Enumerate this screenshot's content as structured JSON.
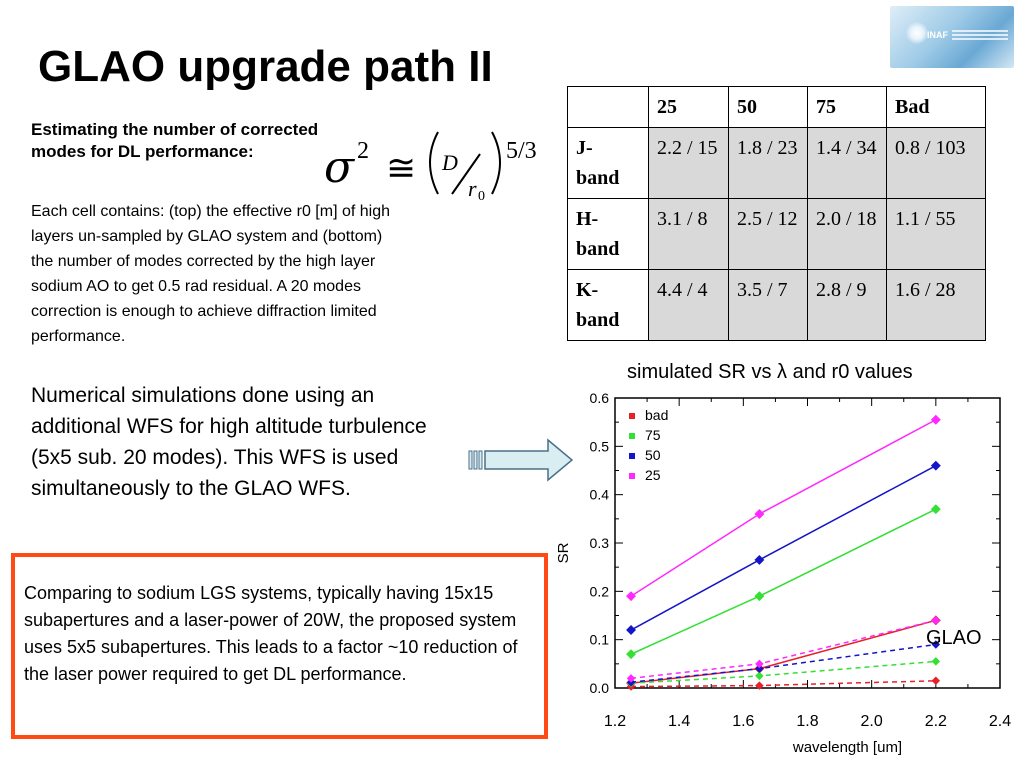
{
  "title": "GLAO upgrade path II",
  "logo": {
    "text": "INAF"
  },
  "intro": {
    "heading": "Estimating the number of corrected modes for DL performance:",
    "body": "Each cell contains:  (top) the effective r0 [m] of high layers un-sampled by GLAO system and (bottom) the number of modes corrected by the high layer sodium AO to get 0.5 rad residual. A 20 modes correction is enough to achieve diffraction limited performance."
  },
  "formula": {
    "lhs": "σ",
    "lhs_exp": "2",
    "approx": "≅",
    "num": "D",
    "den": "r",
    "den_sub": "0",
    "power": "5/3"
  },
  "table": {
    "headers": [
      "",
      "25",
      "50",
      "75",
      "Bad"
    ],
    "rows": [
      {
        "band": "J-\nband",
        "cells": [
          "2.2 / 15",
          "1.8 / 23",
          "1.4 / 34",
          "0.8 / 103"
        ]
      },
      {
        "band": "H-\nband",
        "cells": [
          "3.1 / 8",
          "2.5 / 12",
          "2.0 / 18",
          "1.1 / 55"
        ]
      },
      {
        "band": "K-\nband",
        "cells": [
          "4.4 / 4",
          "3.5 / 7",
          "2.8 / 9",
          "1.6 / 28"
        ]
      }
    ]
  },
  "simulation_text": "Numerical simulations done using an additional WFS for high altitude turbulence (5x5 sub. 20 modes). This WFS is used simultaneously to the GLAO WFS.",
  "chart_title": "simulated SR vs λ and r0 values",
  "glao_label": "GLAO",
  "comparison_text": "Comparing to sodium LGS systems, typically having 15x15 subapertures and a laser-power of 20W, the proposed system uses 5x5 subapertures. This leads to a factor ~10 reduction of the laser power required to get DL performance.",
  "chart_data": {
    "type": "line",
    "xlabel": "wavelength [um]",
    "ylabel": "SR",
    "xlim": [
      1.2,
      2.4
    ],
    "ylim": [
      0.0,
      0.6
    ],
    "xticks": [
      "1.2",
      "1.4",
      "1.6",
      "1.8",
      "2.0",
      "2.2",
      "2.4"
    ],
    "yticks": [
      "0.0",
      "0.1",
      "0.2",
      "0.3",
      "0.4",
      "0.5",
      "0.6"
    ],
    "x": [
      1.25,
      1.65,
      2.2
    ],
    "legend_position": "top-left",
    "series": [
      {
        "name": "bad",
        "color": "#e8202a",
        "values": [
          0.01,
          0.04,
          0.14
        ],
        "glao_values": [
          0.003,
          0.005,
          0.015
        ]
      },
      {
        "name": "75",
        "color": "#33e033",
        "values": [
          0.07,
          0.19,
          0.37
        ],
        "glao_values": [
          0.01,
          0.025,
          0.055
        ]
      },
      {
        "name": "50",
        "color": "#1414c8",
        "values": [
          0.12,
          0.265,
          0.46
        ],
        "glao_values": [
          0.012,
          0.04,
          0.09
        ]
      },
      {
        "name": "25",
        "color": "#ff28ff",
        "values": [
          0.19,
          0.36,
          0.555
        ],
        "glao_values": [
          0.02,
          0.05,
          0.14
        ]
      }
    ]
  }
}
